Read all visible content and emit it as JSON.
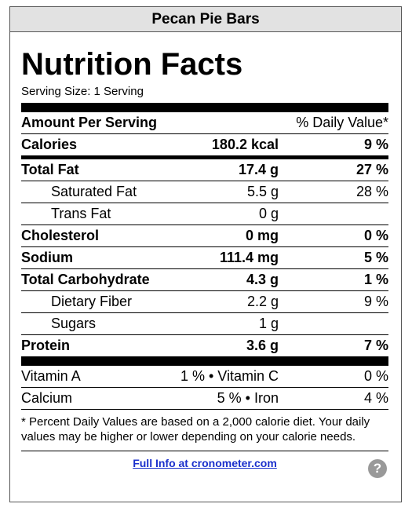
{
  "header": {
    "title": "Pecan Pie Bars"
  },
  "label": {
    "title": "Nutrition Facts",
    "serving_size": "Serving Size: 1 Serving",
    "amount_header": "Amount Per Serving",
    "dv_header": "% Daily Value*",
    "calories": {
      "name": "Calories",
      "amount": "180.2 kcal",
      "dv": "9 %"
    },
    "nutrients": [
      {
        "name": "Total Fat",
        "amount": "17.4 g",
        "dv": "27 %",
        "bold": true,
        "indent": false
      },
      {
        "name": "Saturated Fat",
        "amount": "5.5 g",
        "dv": "28 %",
        "bold": false,
        "indent": true
      },
      {
        "name": "Trans Fat",
        "amount": "0 g",
        "bold": false,
        "indent": true
      },
      {
        "name": "Cholesterol",
        "amount": "0 mg",
        "dv": "0 %",
        "bold": true,
        "indent": false
      },
      {
        "name": "Sodium",
        "amount": "111.4 mg",
        "dv": "5 %",
        "bold": true,
        "indent": false
      },
      {
        "name": "Total Carbohydrate",
        "amount": "4.3 g",
        "dv": "1 %",
        "bold": true,
        "indent": false
      },
      {
        "name": "Dietary Fiber",
        "amount": "2.2 g",
        "dv": "9 %",
        "bold": false,
        "indent": true
      },
      {
        "name": "Sugars",
        "amount": "1 g",
        "bold": false,
        "indent": true
      },
      {
        "name": "Protein",
        "amount": "3.6 g",
        "dv": "7 %",
        "bold": true,
        "indent": false
      }
    ],
    "vitamins": [
      {
        "name": "Vitamin A",
        "amount": "1 % • Vitamin C",
        "dv": "0 %"
      },
      {
        "name": "Calcium",
        "amount": "5 % • Iron",
        "dv": "4 %"
      }
    ],
    "footnote": "* Percent Daily Values are based on a 2,000 calorie diet. Your daily values may be higher or lower depending on your calorie needs.",
    "link": "Full Info at cronometer.com",
    "help": "?"
  }
}
